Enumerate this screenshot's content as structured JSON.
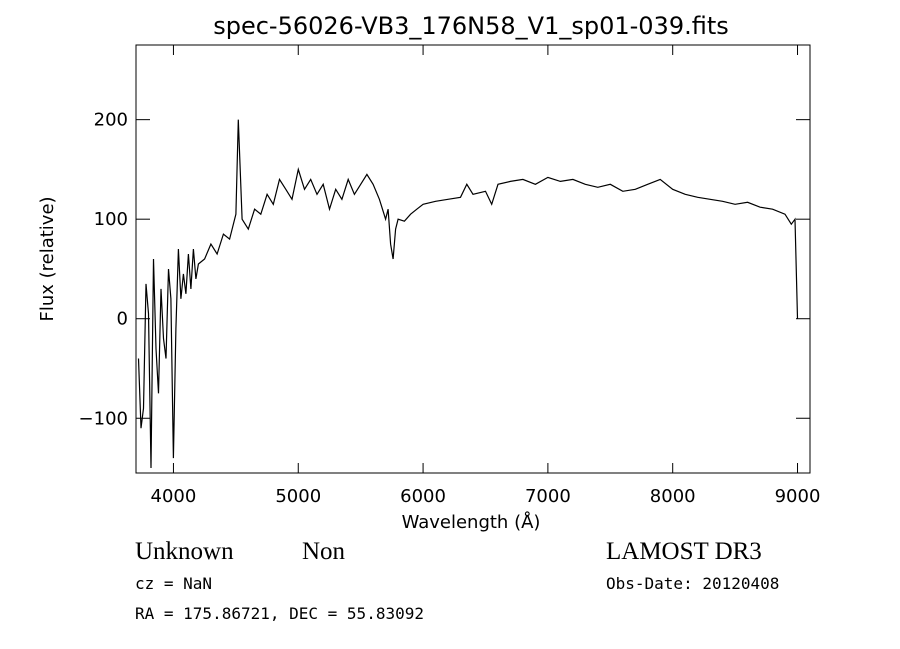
{
  "chart_data": {
    "type": "line",
    "title": "spec-56026-VB3_176N58_V1_sp01-039.fits",
    "xlabel": "Wavelength (Å)",
    "ylabel": "Flux (relative)",
    "xlim": [
      3700,
      9100
    ],
    "ylim": [
      -155,
      275
    ],
    "x_ticks": [
      4000,
      5000,
      6000,
      7000,
      8000,
      9000
    ],
    "x_tick_labels": [
      "4000",
      "5000",
      "6000",
      "7000",
      "8000",
      "9000"
    ],
    "y_ticks": [
      -100,
      0,
      100,
      200
    ],
    "y_tick_labels": [
      "−100",
      "0",
      "100",
      "200"
    ],
    "grid": false,
    "legend": "none",
    "series": [
      {
        "name": "flux",
        "points": [
          [
            3720,
            -40
          ],
          [
            3740,
            -110
          ],
          [
            3760,
            -90
          ],
          [
            3780,
            35
          ],
          [
            3800,
            5
          ],
          [
            3820,
            -150
          ],
          [
            3840,
            60
          ],
          [
            3860,
            -30
          ],
          [
            3880,
            -75
          ],
          [
            3900,
            30
          ],
          [
            3920,
            -20
          ],
          [
            3940,
            -40
          ],
          [
            3960,
            50
          ],
          [
            3980,
            20
          ],
          [
            4000,
            -140
          ],
          [
            4020,
            -10
          ],
          [
            4040,
            70
          ],
          [
            4060,
            20
          ],
          [
            4080,
            45
          ],
          [
            4100,
            25
          ],
          [
            4120,
            65
          ],
          [
            4140,
            30
          ],
          [
            4160,
            70
          ],
          [
            4180,
            40
          ],
          [
            4200,
            55
          ],
          [
            4250,
            60
          ],
          [
            4300,
            75
          ],
          [
            4350,
            65
          ],
          [
            4400,
            85
          ],
          [
            4450,
            80
          ],
          [
            4500,
            105
          ],
          [
            4520,
            200
          ],
          [
            4550,
            100
          ],
          [
            4600,
            90
          ],
          [
            4650,
            110
          ],
          [
            4700,
            105
          ],
          [
            4750,
            125
          ],
          [
            4800,
            115
          ],
          [
            4850,
            140
          ],
          [
            4900,
            130
          ],
          [
            4950,
            120
          ],
          [
            5000,
            150
          ],
          [
            5050,
            130
          ],
          [
            5100,
            140
          ],
          [
            5150,
            125
          ],
          [
            5200,
            135
          ],
          [
            5250,
            110
          ],
          [
            5300,
            130
          ],
          [
            5350,
            120
          ],
          [
            5400,
            140
          ],
          [
            5450,
            125
          ],
          [
            5500,
            135
          ],
          [
            5550,
            145
          ],
          [
            5600,
            135
          ],
          [
            5650,
            120
          ],
          [
            5700,
            100
          ],
          [
            5720,
            110
          ],
          [
            5740,
            75
          ],
          [
            5760,
            60
          ],
          [
            5780,
            90
          ],
          [
            5800,
            100
          ],
          [
            5850,
            98
          ],
          [
            5900,
            105
          ],
          [
            5950,
            110
          ],
          [
            6000,
            115
          ],
          [
            6100,
            118
          ],
          [
            6200,
            120
          ],
          [
            6300,
            122
          ],
          [
            6350,
            135
          ],
          [
            6400,
            125
          ],
          [
            6500,
            128
          ],
          [
            6550,
            115
          ],
          [
            6600,
            135
          ],
          [
            6700,
            138
          ],
          [
            6800,
            140
          ],
          [
            6900,
            135
          ],
          [
            7000,
            142
          ],
          [
            7100,
            138
          ],
          [
            7200,
            140
          ],
          [
            7300,
            135
          ],
          [
            7400,
            132
          ],
          [
            7500,
            135
          ],
          [
            7600,
            128
          ],
          [
            7700,
            130
          ],
          [
            7800,
            135
          ],
          [
            7900,
            140
          ],
          [
            8000,
            130
          ],
          [
            8100,
            125
          ],
          [
            8200,
            122
          ],
          [
            8300,
            120
          ],
          [
            8400,
            118
          ],
          [
            8500,
            115
          ],
          [
            8600,
            117
          ],
          [
            8700,
            112
          ],
          [
            8800,
            110
          ],
          [
            8900,
            105
          ],
          [
            8950,
            95
          ],
          [
            8980,
            100
          ],
          [
            9000,
            0
          ]
        ]
      }
    ]
  },
  "info": {
    "object_class": "Unknown",
    "object_subclass": "Non",
    "redshift_line": "cz = NaN",
    "coords_line": "RA = 175.86721, DEC =  55.83092",
    "survey": "LAMOST DR3",
    "obs_date_line": "Obs-Date: 20120408"
  },
  "colors": {
    "line": "#000000",
    "background": "#ffffff",
    "axes": "#000000"
  }
}
